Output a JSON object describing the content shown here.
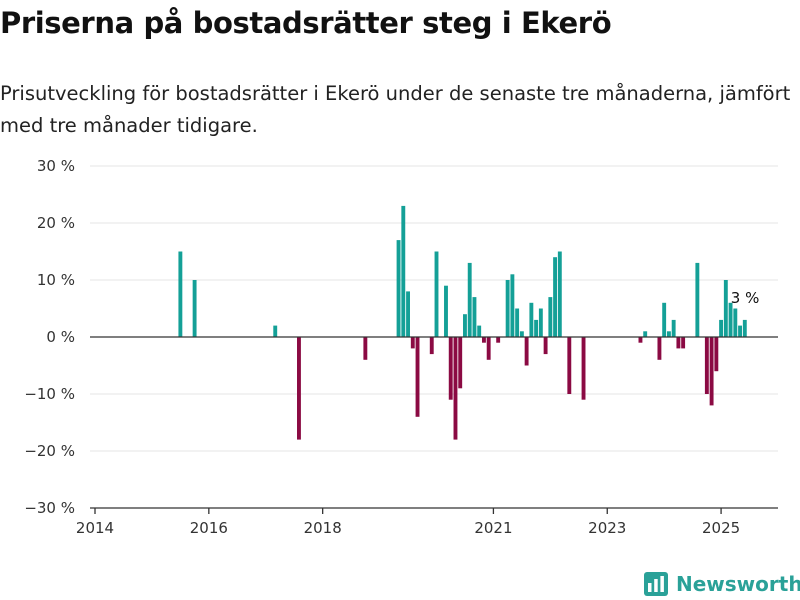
{
  "header": {
    "title": "Priserna på bostadsrätter steg i Ekerö",
    "subtitle": "Prisutveckling för bostadsrätter i Ekerö under de senaste tre månaderna, jämfört med tre månader tidigare."
  },
  "brand": {
    "name": "Newsworthy",
    "icon": "bar-chart-logo-icon"
  },
  "colors": {
    "positive": "#14a097",
    "negative": "#8b0a43",
    "grid": "#e4e4e4",
    "baseline": "#333333"
  },
  "chart_data": {
    "type": "bar",
    "x_unit": "month",
    "xlim": [
      "2014-01",
      "2026-01"
    ],
    "ylim": [
      -30,
      30
    ],
    "y_ticks": [
      30,
      20,
      10,
      0,
      -10,
      -20,
      -30
    ],
    "y_tick_labels": [
      "30 %",
      "20 %",
      "10 %",
      "0 %",
      "−10 %",
      "−20 %",
      "−30 %"
    ],
    "x_ticks": [
      "2014-01",
      "2016-01",
      "2018-01",
      "2021-01",
      "2023-01",
      "2025-01"
    ],
    "x_tick_labels": [
      "2014",
      "2016",
      "2018",
      "2021",
      "2023",
      "2025"
    ],
    "grid": true,
    "annotation": {
      "x": "2025-06",
      "text": "3 %"
    },
    "points": [
      {
        "x": "2015-07",
        "y": 15
      },
      {
        "x": "2015-10",
        "y": 10
      },
      {
        "x": "2017-03",
        "y": 2
      },
      {
        "x": "2017-08",
        "y": -18
      },
      {
        "x": "2018-10",
        "y": -4
      },
      {
        "x": "2019-05",
        "y": 17
      },
      {
        "x": "2019-06",
        "y": 23
      },
      {
        "x": "2019-07",
        "y": 8
      },
      {
        "x": "2019-08",
        "y": -2
      },
      {
        "x": "2019-09",
        "y": -14
      },
      {
        "x": "2019-12",
        "y": -3
      },
      {
        "x": "2020-01",
        "y": 15
      },
      {
        "x": "2020-03",
        "y": 9
      },
      {
        "x": "2020-04",
        "y": -11
      },
      {
        "x": "2020-05",
        "y": -18
      },
      {
        "x": "2020-06",
        "y": -9
      },
      {
        "x": "2020-07",
        "y": 4
      },
      {
        "x": "2020-08",
        "y": 13
      },
      {
        "x": "2020-09",
        "y": 7
      },
      {
        "x": "2020-10",
        "y": 2
      },
      {
        "x": "2020-11",
        "y": -1
      },
      {
        "x": "2020-12",
        "y": -4
      },
      {
        "x": "2021-02",
        "y": -1
      },
      {
        "x": "2021-04",
        "y": 10
      },
      {
        "x": "2021-05",
        "y": 11
      },
      {
        "x": "2021-06",
        "y": 5
      },
      {
        "x": "2021-07",
        "y": 1
      },
      {
        "x": "2021-08",
        "y": -5
      },
      {
        "x": "2021-09",
        "y": 6
      },
      {
        "x": "2021-10",
        "y": 3
      },
      {
        "x": "2021-11",
        "y": 5
      },
      {
        "x": "2021-12",
        "y": -3
      },
      {
        "x": "2022-01",
        "y": 7
      },
      {
        "x": "2022-02",
        "y": 14
      },
      {
        "x": "2022-03",
        "y": 15
      },
      {
        "x": "2022-05",
        "y": -10
      },
      {
        "x": "2022-08",
        "y": -11
      },
      {
        "x": "2023-08",
        "y": -1
      },
      {
        "x": "2023-09",
        "y": 1
      },
      {
        "x": "2023-12",
        "y": -4
      },
      {
        "x": "2024-01",
        "y": 6
      },
      {
        "x": "2024-02",
        "y": 1
      },
      {
        "x": "2024-03",
        "y": 3
      },
      {
        "x": "2024-04",
        "y": -2
      },
      {
        "x": "2024-05",
        "y": -2
      },
      {
        "x": "2024-08",
        "y": 13
      },
      {
        "x": "2024-10",
        "y": -10
      },
      {
        "x": "2024-11",
        "y": -12
      },
      {
        "x": "2024-12",
        "y": -6
      },
      {
        "x": "2025-01",
        "y": 3
      },
      {
        "x": "2025-02",
        "y": 10
      },
      {
        "x": "2025-03",
        "y": 6
      },
      {
        "x": "2025-04",
        "y": 5
      },
      {
        "x": "2025-05",
        "y": 2
      },
      {
        "x": "2025-06",
        "y": 3
      }
    ]
  }
}
